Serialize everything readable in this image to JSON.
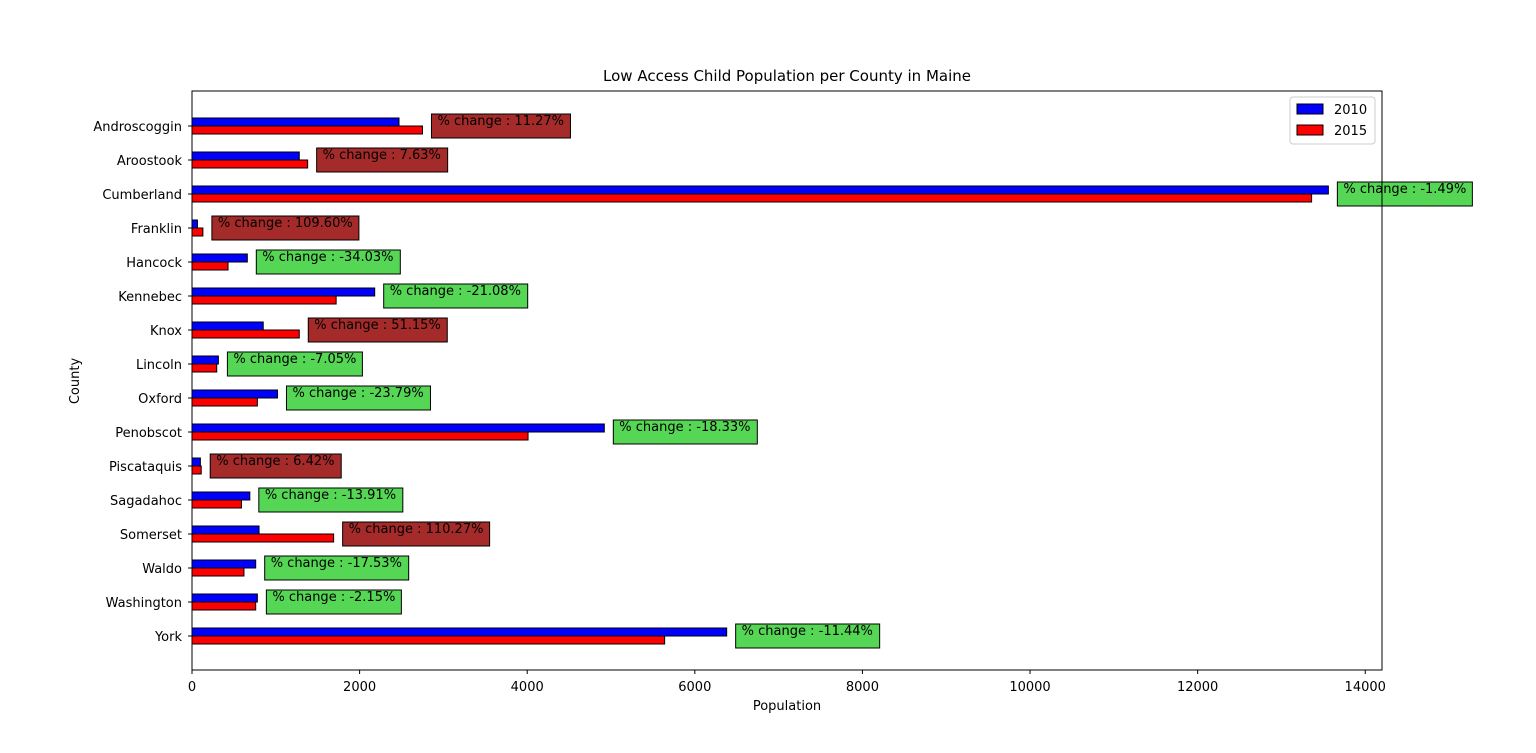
{
  "chart_data": {
    "type": "bar",
    "orientation": "horizontal",
    "title": "Low Access Child Population per County in Maine",
    "xlabel": "Population",
    "ylabel": "County",
    "xlim": [
      0,
      14200
    ],
    "xticks": [
      0,
      2000,
      4000,
      6000,
      8000,
      10000,
      12000,
      14000
    ],
    "grid": false,
    "legend_position": "top-right",
    "categories": [
      "Androscoggin",
      "Aroostook",
      "Cumberland",
      "Franklin",
      "Hancock",
      "Kennebec",
      "Knox",
      "Lincoln",
      "Oxford",
      "Penobscot",
      "Piscataquis",
      "Sagadahoc",
      "Somerset",
      "Waldo",
      "Washington",
      "York"
    ],
    "series": [
      {
        "name": "2010",
        "color": "#0000ff",
        "values": [
          2470,
          1280,
          13560,
          65,
          660,
          2180,
          850,
          315,
          1020,
          4920,
          100,
          690,
          800,
          760,
          780,
          6380
        ]
      },
      {
        "name": "2015",
        "color": "#ff0000",
        "values": [
          2750,
          1380,
          13360,
          130,
          430,
          1720,
          1280,
          295,
          780,
          4010,
          110,
          590,
          1690,
          620,
          760,
          5640
        ]
      }
    ],
    "annotations": [
      {
        "text": "% change : 11.27%",
        "trend": "increase"
      },
      {
        "text": "% change : 7.63%",
        "trend": "increase"
      },
      {
        "text": "% change : -1.49%",
        "trend": "decrease"
      },
      {
        "text": "% change : 109.60%",
        "trend": "increase"
      },
      {
        "text": "% change : -34.03%",
        "trend": "decrease"
      },
      {
        "text": "% change : -21.08%",
        "trend": "decrease"
      },
      {
        "text": "% change : 51.15%",
        "trend": "increase"
      },
      {
        "text": "% change : -7.05%",
        "trend": "decrease"
      },
      {
        "text": "% change : -23.79%",
        "trend": "decrease"
      },
      {
        "text": "% change : -18.33%",
        "trend": "decrease"
      },
      {
        "text": "% change : 6.42%",
        "trend": "increase"
      },
      {
        "text": "% change : -13.91%",
        "trend": "decrease"
      },
      {
        "text": "% change : 110.27%",
        "trend": "increase"
      },
      {
        "text": "% change : -17.53%",
        "trend": "decrease"
      },
      {
        "text": "% change : -2.15%",
        "trend": "decrease"
      },
      {
        "text": "% change : -11.44%",
        "trend": "decrease"
      }
    ],
    "colors": {
      "increase": "#a52a2a",
      "decrease": "#55d655",
      "edge": "#000000"
    }
  }
}
